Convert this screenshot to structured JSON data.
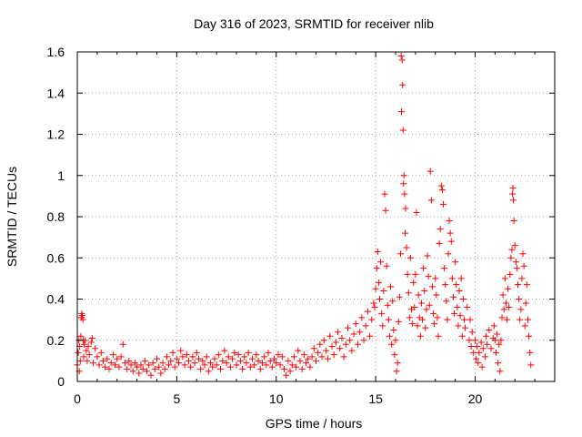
{
  "chart_data": {
    "type": "scatter",
    "title": "Day 316 of 2023, SRMTID for receiver nlib",
    "xlabel": "GPS time / hours",
    "ylabel": "SRMTID / TECUs",
    "xlim": [
      0,
      24
    ],
    "ylim": [
      0,
      1.6
    ],
    "xticks": [
      0,
      5,
      10,
      15,
      20
    ],
    "yticks": [
      0,
      0.2,
      0.4,
      0.6,
      0.8,
      1,
      1.2,
      1.4,
      1.6
    ],
    "xtick_labels": [
      "0",
      "5",
      "10",
      "15",
      "20"
    ],
    "ytick_labels": [
      "0",
      "0.2",
      "0.4",
      "0.6",
      "0.8",
      "1",
      "1.2",
      "1.4",
      "1.6"
    ],
    "grid": true,
    "marker": "+",
    "color": "#ff0000",
    "series": [
      {
        "name": "SRMTID",
        "points": [
          [
            0.0,
            0.08
          ],
          [
            0.05,
            0.14
          ],
          [
            0.08,
            0.2
          ],
          [
            0.1,
            0.05
          ],
          [
            0.12,
            0.17
          ],
          [
            0.15,
            0.1
          ],
          [
            0.18,
            0.22
          ],
          [
            0.2,
            0.31
          ],
          [
            0.22,
            0.33
          ],
          [
            0.25,
            0.32
          ],
          [
            0.28,
            0.3
          ],
          [
            0.3,
            0.2
          ],
          [
            0.32,
            0.12
          ],
          [
            0.35,
            0.18
          ],
          [
            0.4,
            0.2
          ],
          [
            0.45,
            0.15
          ],
          [
            0.5,
            0.1
          ],
          [
            0.55,
            0.17
          ],
          [
            0.6,
            0.13
          ],
          [
            0.7,
            0.19
          ],
          [
            0.75,
            0.21
          ],
          [
            0.8,
            0.09
          ],
          [
            0.9,
            0.16
          ],
          [
            1.0,
            0.12
          ],
          [
            1.1,
            0.08
          ],
          [
            1.2,
            0.14
          ],
          [
            1.3,
            0.1
          ],
          [
            1.4,
            0.07
          ],
          [
            1.5,
            0.11
          ],
          [
            1.6,
            0.06
          ],
          [
            1.7,
            0.09
          ],
          [
            1.8,
            0.13
          ],
          [
            1.9,
            0.08
          ],
          [
            2.0,
            0.11
          ],
          [
            2.1,
            0.07
          ],
          [
            2.2,
            0.12
          ],
          [
            2.3,
            0.18
          ],
          [
            2.4,
            0.09
          ],
          [
            2.5,
            0.06
          ],
          [
            2.6,
            0.1
          ],
          [
            2.7,
            0.08
          ],
          [
            2.8,
            0.05
          ],
          [
            2.9,
            0.09
          ],
          [
            3.0,
            0.07
          ],
          [
            3.1,
            0.04
          ],
          [
            3.2,
            0.08
          ],
          [
            3.3,
            0.06
          ],
          [
            3.4,
            0.1
          ],
          [
            3.5,
            0.05
          ],
          [
            3.6,
            0.08
          ],
          [
            3.7,
            0.03
          ],
          [
            3.8,
            0.09
          ],
          [
            3.9,
            0.06
          ],
          [
            4.0,
            0.11
          ],
          [
            4.1,
            0.07
          ],
          [
            4.2,
            0.04
          ],
          [
            4.3,
            0.09
          ],
          [
            4.4,
            0.06
          ],
          [
            4.5,
            0.12
          ],
          [
            4.6,
            0.08
          ],
          [
            4.7,
            0.1
          ],
          [
            4.8,
            0.14
          ],
          [
            4.9,
            0.07
          ],
          [
            5.0,
            0.11
          ],
          [
            5.1,
            0.09
          ],
          [
            5.2,
            0.15
          ],
          [
            5.3,
            0.12
          ],
          [
            5.4,
            0.08
          ],
          [
            5.5,
            0.13
          ],
          [
            5.6,
            0.1
          ],
          [
            5.7,
            0.07
          ],
          [
            5.8,
            0.12
          ],
          [
            5.9,
            0.09
          ],
          [
            6.0,
            0.14
          ],
          [
            6.1,
            0.11
          ],
          [
            6.2,
            0.06
          ],
          [
            6.3,
            0.1
          ],
          [
            6.4,
            0.08
          ],
          [
            6.5,
            0.12
          ],
          [
            6.6,
            0.05
          ],
          [
            6.7,
            0.09
          ],
          [
            6.8,
            0.07
          ],
          [
            6.9,
            0.11
          ],
          [
            7.0,
            0.08
          ],
          [
            7.1,
            0.13
          ],
          [
            7.2,
            0.06
          ],
          [
            7.3,
            0.1
          ],
          [
            7.4,
            0.15
          ],
          [
            7.5,
            0.09
          ],
          [
            7.6,
            0.12
          ],
          [
            7.7,
            0.07
          ],
          [
            7.8,
            0.11
          ],
          [
            7.9,
            0.14
          ],
          [
            8.0,
            0.08
          ],
          [
            8.1,
            0.13
          ],
          [
            8.2,
            0.1
          ],
          [
            8.3,
            0.06
          ],
          [
            8.4,
            0.12
          ],
          [
            8.5,
            0.09
          ],
          [
            8.6,
            0.14
          ],
          [
            8.7,
            0.07
          ],
          [
            8.8,
            0.11
          ],
          [
            8.9,
            0.08
          ],
          [
            9.0,
            0.13
          ],
          [
            9.1,
            0.1
          ],
          [
            9.2,
            0.06
          ],
          [
            9.3,
            0.09
          ],
          [
            9.4,
            0.12
          ],
          [
            9.5,
            0.08
          ],
          [
            9.6,
            0.14
          ],
          [
            9.7,
            0.1
          ],
          [
            9.8,
            0.07
          ],
          [
            9.9,
            0.11
          ],
          [
            10.0,
            0.09
          ],
          [
            10.1,
            0.13
          ],
          [
            10.2,
            0.08
          ],
          [
            10.3,
            0.12
          ],
          [
            10.4,
            0.06
          ],
          [
            10.5,
            0.03
          ],
          [
            10.6,
            0.1
          ],
          [
            10.7,
            0.05
          ],
          [
            10.8,
            0.08
          ],
          [
            10.9,
            0.12
          ],
          [
            11.0,
            0.07
          ],
          [
            11.1,
            0.15
          ],
          [
            11.2,
            0.1
          ],
          [
            11.3,
            0.06
          ],
          [
            11.4,
            0.13
          ],
          [
            11.5,
            0.09
          ],
          [
            11.6,
            0.11
          ],
          [
            11.7,
            0.07
          ],
          [
            11.8,
            0.12
          ],
          [
            11.9,
            0.16
          ],
          [
            12.0,
            0.1
          ],
          [
            12.1,
            0.14
          ],
          [
            12.2,
            0.18
          ],
          [
            12.3,
            0.12
          ],
          [
            12.4,
            0.2
          ],
          [
            12.5,
            0.15
          ],
          [
            12.6,
            0.11
          ],
          [
            12.7,
            0.22
          ],
          [
            12.8,
            0.17
          ],
          [
            12.9,
            0.13
          ],
          [
            13.0,
            0.19
          ],
          [
            13.1,
            0.24
          ],
          [
            13.2,
            0.16
          ],
          [
            13.3,
            0.21
          ],
          [
            13.4,
            0.12
          ],
          [
            13.5,
            0.18
          ],
          [
            13.6,
            0.26
          ],
          [
            13.7,
            0.2
          ],
          [
            13.8,
            0.15
          ],
          [
            13.9,
            0.23
          ],
          [
            14.0,
            0.28
          ],
          [
            14.1,
            0.18
          ],
          [
            14.2,
            0.24
          ],
          [
            14.3,
            0.31
          ],
          [
            14.4,
            0.2
          ],
          [
            14.5,
            0.27
          ],
          [
            14.6,
            0.34
          ],
          [
            14.7,
            0.22
          ],
          [
            14.8,
            0.3
          ],
          [
            14.9,
            0.38
          ],
          [
            14.95,
            0.36
          ],
          [
            15.0,
            0.45
          ],
          [
            15.05,
            0.55
          ],
          [
            15.1,
            0.63
          ],
          [
            15.15,
            0.48
          ],
          [
            15.2,
            0.4
          ],
          [
            15.25,
            0.58
          ],
          [
            15.3,
            0.33
          ],
          [
            15.35,
            0.27
          ],
          [
            15.4,
            0.44
          ],
          [
            15.45,
            0.91
          ],
          [
            15.5,
            0.83
          ],
          [
            15.55,
            0.56
          ],
          [
            15.6,
            0.37
          ],
          [
            15.65,
            0.3
          ],
          [
            15.7,
            0.22
          ],
          [
            15.75,
            0.46
          ],
          [
            15.8,
            0.18
          ],
          [
            15.85,
            0.39
          ],
          [
            15.9,
            0.25
          ],
          [
            15.95,
            0.13
          ],
          [
            16.0,
            0.2
          ],
          [
            16.05,
            0.05
          ],
          [
            16.1,
            0.09
          ],
          [
            16.15,
            0.29
          ],
          [
            16.2,
            0.41
          ],
          [
            16.25,
            0.62
          ],
          [
            16.28,
            1.58
          ],
          [
            16.3,
            1.31
          ],
          [
            16.33,
            1.56
          ],
          [
            16.35,
            1.44
          ],
          [
            16.38,
            1.22
          ],
          [
            16.4,
            0.96
          ],
          [
            16.42,
            1.0
          ],
          [
            16.45,
            0.91
          ],
          [
            16.48,
            0.72
          ],
          [
            16.5,
            0.84
          ],
          [
            16.55,
            0.65
          ],
          [
            16.6,
            0.52
          ],
          [
            16.65,
            0.43
          ],
          [
            16.7,
            0.31
          ],
          [
            16.75,
            0.6
          ],
          [
            16.8,
            0.35
          ],
          [
            16.85,
            0.28
          ],
          [
            16.9,
            0.48
          ],
          [
            16.95,
            0.36
          ],
          [
            17.0,
            0.52
          ],
          [
            17.05,
            0.82
          ],
          [
            17.1,
            0.27
          ],
          [
            17.15,
            0.42
          ],
          [
            17.2,
            0.31
          ],
          [
            17.25,
            0.22
          ],
          [
            17.3,
            0.38
          ],
          [
            17.35,
            0.3
          ],
          [
            17.4,
            0.55
          ],
          [
            17.45,
            0.44
          ],
          [
            17.5,
            0.26
          ],
          [
            17.55,
            0.35
          ],
          [
            17.6,
            0.61
          ],
          [
            17.65,
            0.51
          ],
          [
            17.7,
            0.37
          ],
          [
            17.75,
            1.02
          ],
          [
            17.8,
            0.88
          ],
          [
            17.85,
            0.46
          ],
          [
            17.9,
            0.33
          ],
          [
            17.95,
            0.28
          ],
          [
            18.0,
            0.5
          ],
          [
            18.05,
            0.42
          ],
          [
            18.1,
            0.31
          ],
          [
            18.15,
            0.22
          ],
          [
            18.2,
            0.67
          ],
          [
            18.25,
            0.74
          ],
          [
            18.3,
            0.95
          ],
          [
            18.35,
            0.93
          ],
          [
            18.4,
            0.86
          ],
          [
            18.45,
            0.55
          ],
          [
            18.5,
            0.47
          ],
          [
            18.55,
            0.39
          ],
          [
            18.6,
            0.3
          ],
          [
            18.65,
            0.62
          ],
          [
            18.7,
            0.78
          ],
          [
            18.75,
            0.72
          ],
          [
            18.8,
            0.68
          ],
          [
            18.85,
            0.5
          ],
          [
            18.9,
            0.41
          ],
          [
            18.95,
            0.33
          ],
          [
            19.0,
            0.58
          ],
          [
            19.05,
            0.47
          ],
          [
            19.1,
            0.36
          ],
          [
            19.15,
            0.27
          ],
          [
            19.2,
            0.44
          ],
          [
            19.25,
            0.32
          ],
          [
            19.3,
            0.5
          ],
          [
            19.35,
            0.22
          ],
          [
            19.4,
            0.4
          ],
          [
            19.45,
            0.3
          ],
          [
            19.5,
            0.26
          ],
          [
            19.6,
            0.36
          ],
          [
            19.7,
            0.2
          ],
          [
            19.75,
            0.3
          ],
          [
            19.8,
            0.17
          ],
          [
            19.85,
            0.24
          ],
          [
            19.9,
            0.14
          ],
          [
            20.0,
            0.2
          ],
          [
            20.05,
            0.11
          ],
          [
            20.1,
            0.17
          ],
          [
            20.15,
            0.09
          ],
          [
            20.2,
            0.14
          ],
          [
            20.3,
            0.19
          ],
          [
            20.35,
            0.07
          ],
          [
            20.4,
            0.16
          ],
          [
            20.5,
            0.12
          ],
          [
            20.55,
            0.22
          ],
          [
            20.6,
            0.18
          ],
          [
            20.7,
            0.25
          ],
          [
            20.8,
            0.16
          ],
          [
            20.9,
            0.21
          ],
          [
            20.95,
            0.27
          ],
          [
            21.0,
            0.2
          ],
          [
            21.05,
            0.14
          ],
          [
            21.1,
            0.23
          ],
          [
            21.15,
            0.09
          ],
          [
            21.2,
            0.18
          ],
          [
            21.25,
            0.05
          ],
          [
            21.3,
            0.2
          ],
          [
            21.35,
            0.31
          ],
          [
            21.4,
            0.42
          ],
          [
            21.45,
            0.35
          ],
          [
            21.5,
            0.5
          ],
          [
            21.55,
            0.38
          ],
          [
            21.6,
            0.3
          ],
          [
            21.65,
            0.45
          ],
          [
            21.7,
            0.36
          ],
          [
            21.75,
            0.52
          ],
          [
            21.8,
            0.6
          ],
          [
            21.85,
            0.64
          ],
          [
            21.88,
            0.91
          ],
          [
            21.9,
            0.94
          ],
          [
            21.92,
            0.88
          ],
          [
            21.95,
            0.78
          ],
          [
            22.0,
            0.66
          ],
          [
            22.05,
            0.58
          ],
          [
            22.1,
            0.55
          ],
          [
            22.15,
            0.47
          ],
          [
            22.2,
            0.4
          ],
          [
            22.25,
            0.3
          ],
          [
            22.3,
            0.35
          ],
          [
            22.35,
            0.5
          ],
          [
            22.4,
            0.62
          ],
          [
            22.45,
            0.56
          ],
          [
            22.5,
            0.27
          ],
          [
            22.55,
            0.38
          ],
          [
            22.6,
            0.47
          ],
          [
            22.65,
            0.3
          ],
          [
            22.7,
            0.22
          ],
          [
            22.75,
            0.14
          ],
          [
            22.8,
            0.08
          ]
        ]
      }
    ]
  }
}
